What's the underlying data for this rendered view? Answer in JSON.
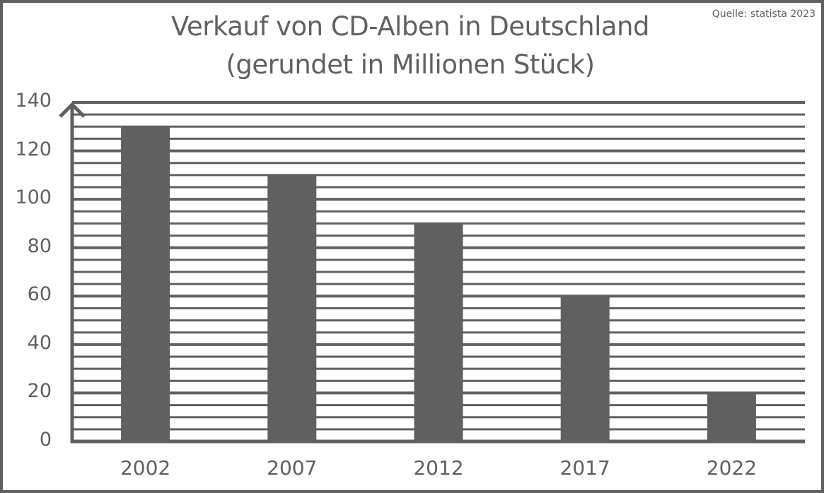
{
  "chart_data": {
    "type": "bar",
    "title": "Verkauf von CD-Alben in Deutschland",
    "subtitle": "(gerundet in Millionen Stück)",
    "source": "Quelle: statista 2023",
    "categories": [
      "2002",
      "2007",
      "2012",
      "2017",
      "2022"
    ],
    "values": [
      130,
      110,
      90,
      60,
      20
    ],
    "xlabel": "",
    "ylabel": "",
    "ylim": [
      0,
      140
    ],
    "yticks": [
      "0",
      "20",
      "40",
      "60",
      "80",
      "100",
      "120",
      "140"
    ],
    "grid": true,
    "minor_grid_step": 5,
    "major_grid_step": 20,
    "legend": null,
    "colors": {
      "bar": "#606060",
      "axis": "#606060",
      "text": "#606060",
      "background": "#ffffff"
    }
  }
}
